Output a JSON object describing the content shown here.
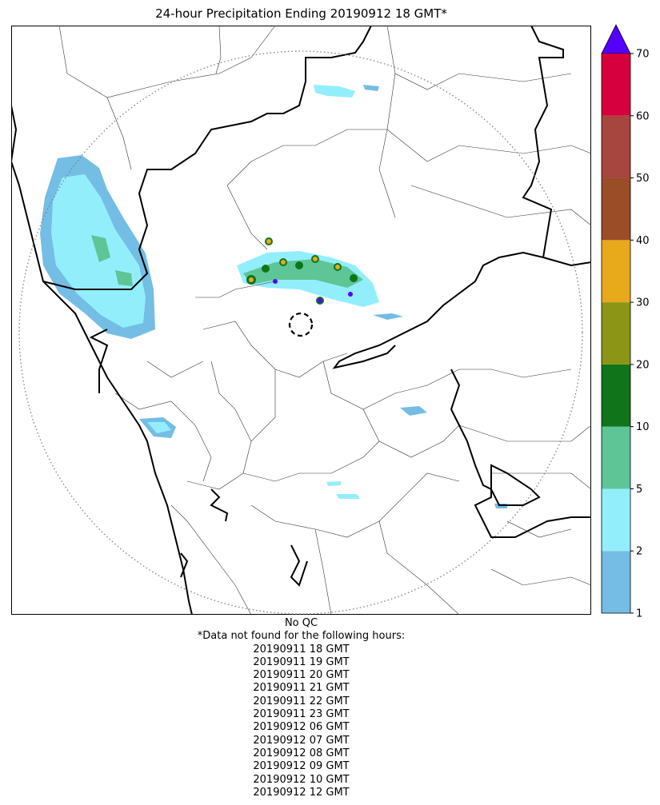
{
  "title": "24-hour Precipitation Ending 20190912 18 GMT*",
  "qc_note": "No QC",
  "missing_header": "*Data not found for the following hours:",
  "missing_hours": [
    "20190911 18 GMT",
    "20190911 19 GMT",
    "20190911 20 GMT",
    "20190911 21 GMT",
    "20190911 22 GMT",
    "20190911 23 GMT",
    "20190912 06 GMT",
    "20190912 07 GMT",
    "20190912 08 GMT",
    "20190912 09 GMT",
    "20190912 10 GMT",
    "20190912 12 GMT"
  ],
  "colorbar": {
    "ticks": [
      "1",
      "2",
      "5",
      "10",
      "20",
      "30",
      "40",
      "50",
      "60",
      "70"
    ],
    "colors": [
      "#74bde4",
      "#93eefc",
      "#5ec596",
      "#0f741a",
      "#8c9516",
      "#e8a91b",
      "#9b4d27",
      "#a6463f",
      "#d6003f"
    ],
    "extend_color": "#5500ff"
  },
  "colors": {
    "coast_border": "#000000",
    "district_lines": "#333333",
    "radar_range_ring": "#808080"
  }
}
